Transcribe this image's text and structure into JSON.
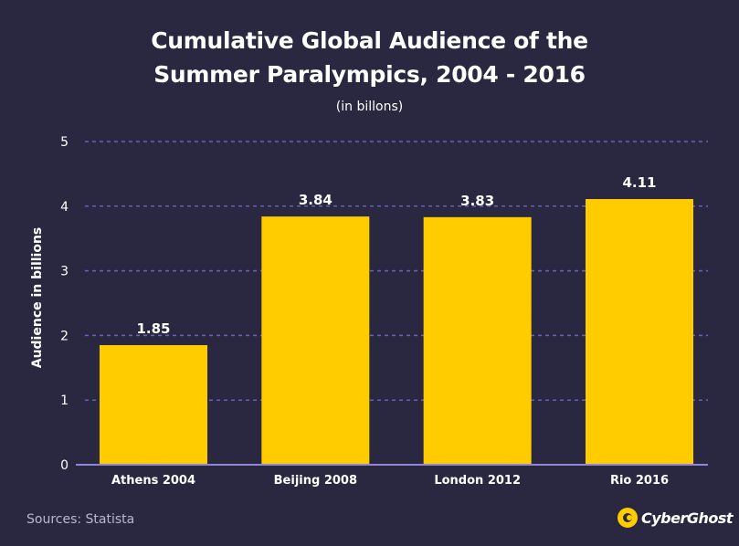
{
  "header": {
    "title_line1": "Cumulative Global Audience of the",
    "title_line2": "Summer Paralympics, 2004 - 2016",
    "subtitle": "(in billons)"
  },
  "footer": {
    "source": "Sources: Statista",
    "brand": "CyberGhost"
  },
  "colors": {
    "background": "#2a2840",
    "bar": "#ffcc00",
    "grid": "#6c61b8",
    "text": "#ffffff"
  },
  "chart_data": {
    "type": "bar",
    "title": "Cumulative Global Audience of the Summer Paralympics, 2004 - 2016",
    "subtitle": "(in billons)",
    "categories": [
      "Athens 2004",
      "Beijing 2008",
      "London 2012",
      "Rio 2016"
    ],
    "values": [
      1.85,
      3.84,
      3.83,
      4.11
    ],
    "value_labels": [
      "1.85",
      "3.84",
      "3.83",
      "4.11"
    ],
    "xlabel": "",
    "ylabel": "Audience in billions",
    "ylim": [
      0,
      5
    ],
    "yticks": [
      "0",
      "1",
      "2",
      "3",
      "4",
      "5"
    ],
    "grid": true,
    "legend": "none"
  }
}
